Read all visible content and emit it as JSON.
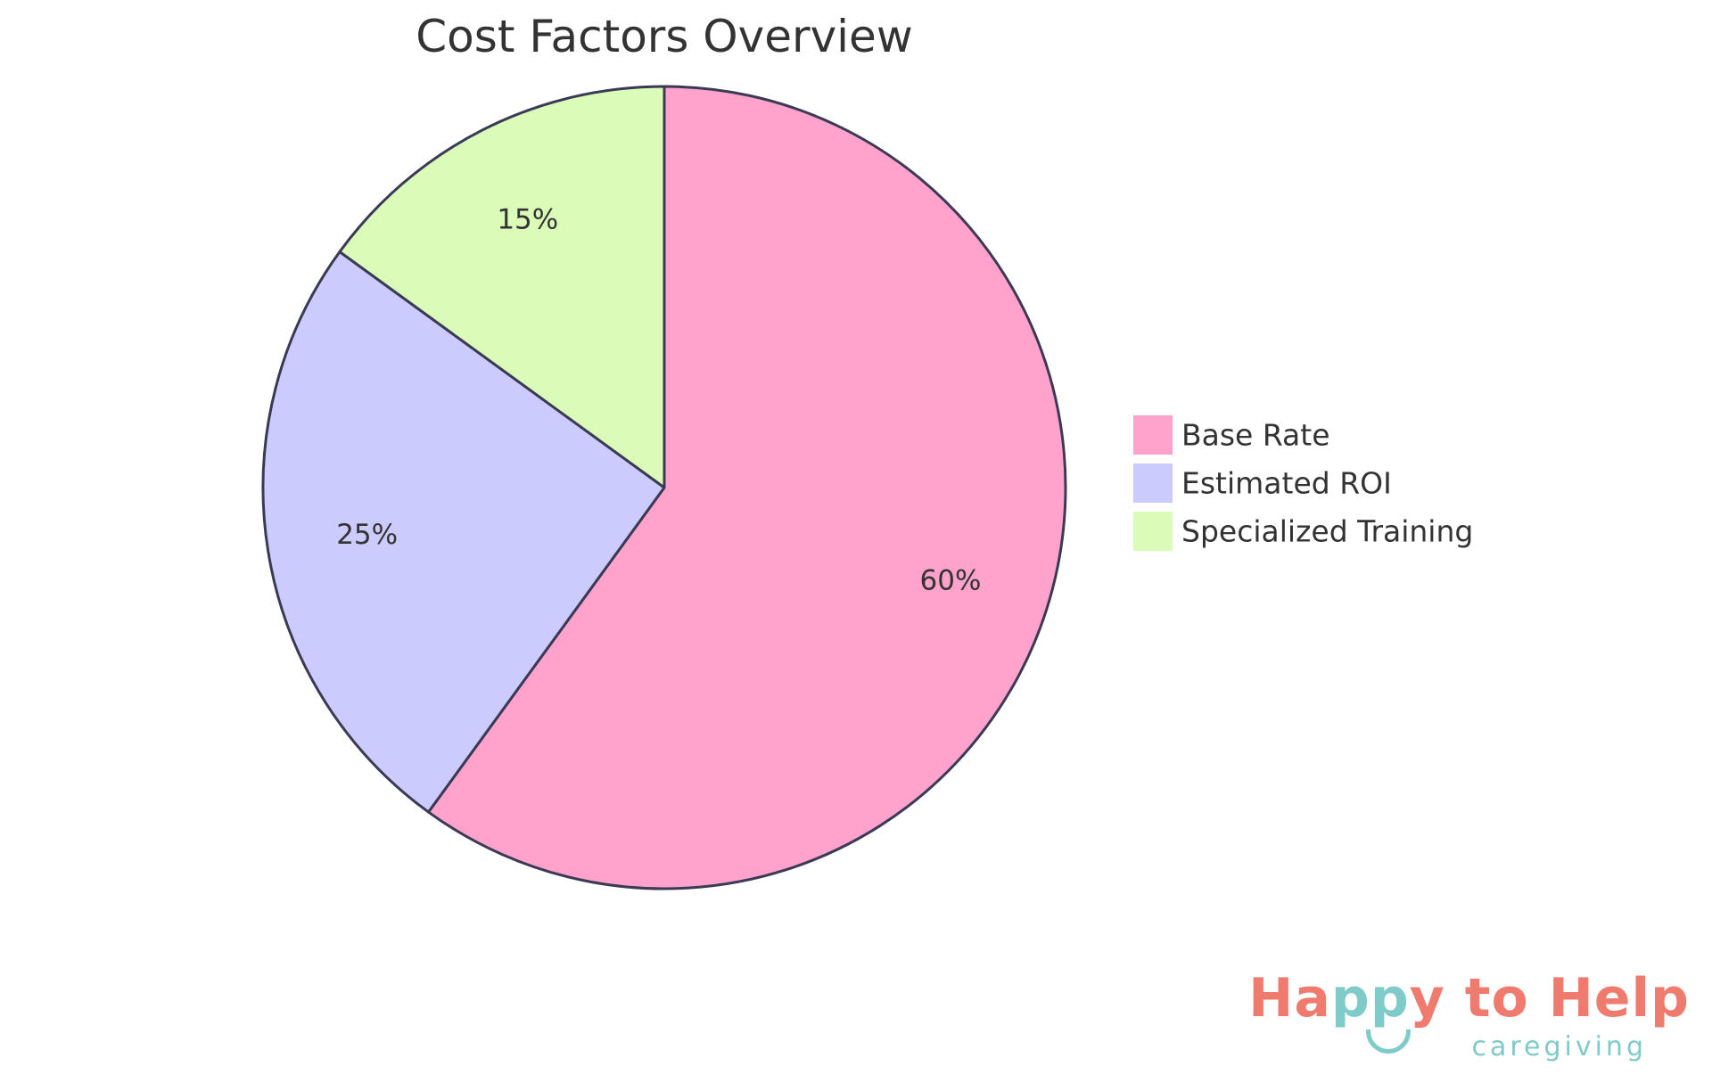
{
  "chart_data": {
    "type": "pie",
    "title": "Cost Factors Overview",
    "slices": [
      {
        "label": "Base Rate",
        "value": 60,
        "display": "60%",
        "color": "#ffa3cc"
      },
      {
        "label": "Estimated ROI",
        "value": 25,
        "display": "25%",
        "color": "#cccbfd"
      },
      {
        "label": "Specialized Training",
        "value": 15,
        "display": "15%",
        "color": "#dbfbb9"
      }
    ],
    "start_angle_deg": 0,
    "direction": "clockwise",
    "stroke_color": "#3a3a55",
    "legend_position": "right"
  },
  "logo": {
    "text_parts": [
      {
        "text": "Ha",
        "color": "#ef7b6f"
      },
      {
        "text": "pp",
        "color": "#7fcbc9"
      },
      {
        "text": "y to Help",
        "color": "#ef7b6f"
      }
    ],
    "subtitle": "caregiving",
    "subtitle_color": "#7fcbc9"
  }
}
